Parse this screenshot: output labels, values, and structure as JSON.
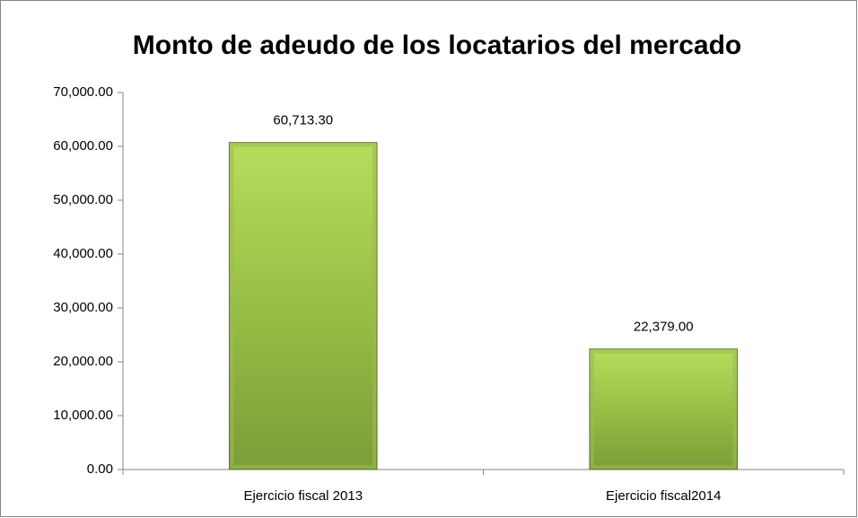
{
  "chart_data": {
    "type": "bar",
    "title": "Monto de adeudo de los locatarios del mercado",
    "categories": [
      "Ejercicio fiscal 2013",
      "Ejercicio fiscal2014"
    ],
    "values": [
      60713.3,
      22379
    ],
    "value_labels": [
      "60,713.30",
      "22,379.00"
    ],
    "color": "#9bbb59",
    "ylim": [
      0,
      70000
    ],
    "yticks": [
      {
        "value": 0,
        "label": "0.00"
      },
      {
        "value": 10000,
        "label": "10,000.00"
      },
      {
        "value": 20000,
        "label": "20,000.00"
      },
      {
        "value": 30000,
        "label": "30,000.00"
      },
      {
        "value": 40000,
        "label": "40,000.00"
      },
      {
        "value": 50000,
        "label": "50,000.00"
      },
      {
        "value": 60000,
        "label": "60,000.00"
      },
      {
        "value": 70000,
        "label": "70,000.00"
      }
    ],
    "grid": false
  }
}
